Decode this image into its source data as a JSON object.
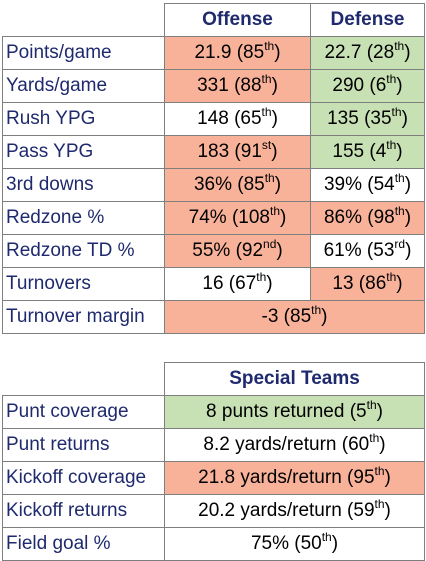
{
  "colors": {
    "orange": "#f9b29a",
    "green": "#c7e0b4",
    "white": "#ffffff",
    "label_text": "#1f2a6e"
  },
  "stats": {
    "headers": {
      "offense": "Offense",
      "defense": "Defense"
    },
    "rows": [
      {
        "label": "Points/game",
        "offense": {
          "value": "21.9",
          "rank": "85",
          "suffix": "th",
          "color": "#f9b29a"
        },
        "defense": {
          "value": "22.7",
          "rank": "28",
          "suffix": "th",
          "color": "#c7e0b4"
        }
      },
      {
        "label": "Yards/game",
        "offense": {
          "value": "331",
          "rank": "88",
          "suffix": "th",
          "color": "#f9b29a"
        },
        "defense": {
          "value": "290",
          "rank": "6",
          "suffix": "th",
          "color": "#c7e0b4"
        }
      },
      {
        "label": "Rush YPG",
        "offense": {
          "value": "148",
          "rank": "65",
          "suffix": "th",
          "color": "#ffffff"
        },
        "defense": {
          "value": "135",
          "rank": "35",
          "suffix": "th",
          "color": "#c7e0b4"
        }
      },
      {
        "label": "Pass YPG",
        "offense": {
          "value": "183",
          "rank": "91",
          "suffix": "st",
          "color": "#f9b29a"
        },
        "defense": {
          "value": "155",
          "rank": "4",
          "suffix": "th",
          "color": "#c7e0b4"
        }
      },
      {
        "label": "3rd downs",
        "offense": {
          "value": "36%",
          "rank": "85",
          "suffix": "th",
          "color": "#f9b29a"
        },
        "defense": {
          "value": "39%",
          "rank": "54",
          "suffix": "th",
          "color": "#ffffff"
        }
      },
      {
        "label": "Redzone %",
        "offense": {
          "value": "74%",
          "rank": "108",
          "suffix": "th",
          "color": "#f9b29a"
        },
        "defense": {
          "value": "86%",
          "rank": "98",
          "suffix": "th",
          "color": "#f9b29a"
        }
      },
      {
        "label": "Redzone TD %",
        "offense": {
          "value": "55%",
          "rank": "92",
          "suffix": "nd",
          "color": "#f9b29a"
        },
        "defense": {
          "value": "61%",
          "rank": "53",
          "suffix": "rd",
          "color": "#ffffff"
        }
      },
      {
        "label": "Turnovers",
        "offense": {
          "value": "16",
          "rank": "67",
          "suffix": "th",
          "color": "#ffffff"
        },
        "defense": {
          "value": "13",
          "rank": "86",
          "suffix": "th",
          "color": "#f9b29a"
        }
      }
    ],
    "margin_row": {
      "label": "Turnover margin",
      "value": "-3",
      "rank": "85",
      "suffix": "th",
      "color": "#f9b29a"
    }
  },
  "special": {
    "header": "Special Teams",
    "rows": [
      {
        "label": "Punt coverage",
        "value": "8 punts returned",
        "rank": "5",
        "suffix": "th",
        "color": "#c7e0b4"
      },
      {
        "label": "Punt returns",
        "value": "8.2 yards/return",
        "rank": "60",
        "suffix": "th",
        "color": "#ffffff"
      },
      {
        "label": "Kickoff coverage",
        "value": "21.8 yards/return",
        "rank": "95",
        "suffix": "th",
        "color": "#f9b29a"
      },
      {
        "label": "Kickoff returns",
        "value": "20.2 yards/return",
        "rank": "59",
        "suffix": "th",
        "color": "#ffffff"
      },
      {
        "label": "Field goal %",
        "value": "75%",
        "rank": "50",
        "suffix": "th",
        "color": "#ffffff"
      }
    ]
  }
}
